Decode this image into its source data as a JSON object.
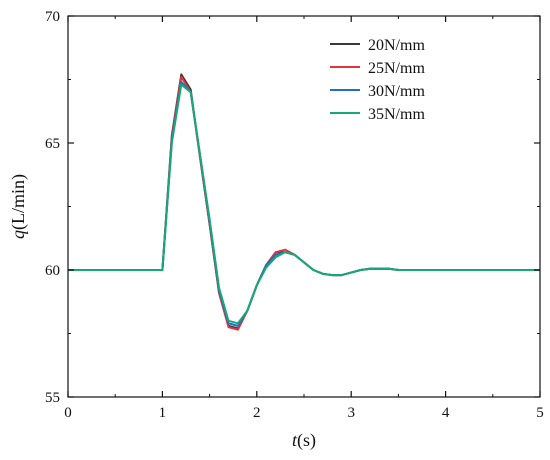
{
  "chart_data": {
    "type": "line",
    "title": "",
    "xlabel": {
      "var": "t",
      "unit": "(s)"
    },
    "ylabel": {
      "var": "q",
      "unit": "(L/min)"
    },
    "xlim": [
      0,
      5
    ],
    "ylim": [
      55,
      70
    ],
    "x_ticks": [
      0,
      1,
      2,
      3,
      4,
      5
    ],
    "y_ticks": [
      55,
      60,
      65,
      70
    ],
    "grid": false,
    "legend_placement": "top-right",
    "series": [
      {
        "name": "20N/mm",
        "color": "#3a3a3a",
        "x": [
          0.0,
          0.1,
          0.2,
          0.3,
          0.4,
          0.5,
          0.6,
          0.7,
          0.8,
          0.9,
          1.0,
          1.1,
          1.2,
          1.3,
          1.4,
          1.5,
          1.6,
          1.7,
          1.8,
          1.9,
          2.0,
          2.1,
          2.2,
          2.3,
          2.4,
          2.5,
          2.6,
          2.7,
          2.8,
          2.9,
          3.0,
          3.1,
          3.2,
          3.3,
          3.4,
          3.5,
          3.6,
          3.7,
          3.8,
          3.9,
          4.0,
          4.1,
          4.2,
          4.3,
          4.4,
          4.5,
          4.6,
          4.7,
          4.8,
          4.9,
          5.0
        ],
        "y": [
          60.0,
          60.0,
          60.0,
          60.0,
          60.0,
          60.0,
          60.0,
          60.0,
          60.0,
          60.0,
          60.0,
          65.3,
          67.7,
          67.1,
          64.4,
          61.8,
          59.1,
          57.8,
          57.7,
          58.4,
          59.4,
          60.2,
          60.7,
          60.7,
          60.6,
          60.3,
          60.0,
          59.85,
          59.8,
          59.8,
          59.9,
          60.0,
          60.05,
          60.05,
          60.05,
          60.0,
          60.0,
          60.0,
          60.0,
          60.0,
          60.0,
          60.0,
          60.0,
          60.0,
          60.0,
          60.0,
          60.0,
          60.0,
          60.0,
          60.0,
          60.0
        ]
      },
      {
        "name": "25N/mm",
        "color": "#e0353a",
        "x": [
          0.0,
          0.1,
          0.2,
          0.3,
          0.4,
          0.5,
          0.6,
          0.7,
          0.8,
          0.9,
          1.0,
          1.1,
          1.2,
          1.3,
          1.4,
          1.5,
          1.6,
          1.7,
          1.8,
          1.9,
          2.0,
          2.1,
          2.2,
          2.3,
          2.4,
          2.5,
          2.6,
          2.7,
          2.8,
          2.9,
          3.0,
          3.1,
          3.2,
          3.3,
          3.4,
          3.5,
          3.6,
          3.7,
          3.8,
          3.9,
          4.0,
          4.1,
          4.2,
          4.3,
          4.4,
          4.5,
          4.6,
          4.7,
          4.8,
          4.9,
          5.0
        ],
        "y": [
          60.0,
          60.0,
          60.0,
          60.0,
          60.0,
          60.0,
          60.0,
          60.0,
          60.0,
          60.0,
          60.0,
          65.2,
          67.6,
          67.0,
          64.4,
          61.8,
          59.1,
          57.75,
          57.65,
          58.4,
          59.4,
          60.2,
          60.7,
          60.8,
          60.6,
          60.3,
          60.0,
          59.85,
          59.8,
          59.8,
          59.9,
          60.0,
          60.05,
          60.05,
          60.05,
          60.0,
          60.0,
          60.0,
          60.0,
          60.0,
          60.0,
          60.0,
          60.0,
          60.0,
          60.0,
          60.0,
          60.0,
          60.0,
          60.0,
          60.0,
          60.0
        ]
      },
      {
        "name": "30N/mm",
        "color": "#1f6fc5",
        "x": [
          0.0,
          0.1,
          0.2,
          0.3,
          0.4,
          0.5,
          0.6,
          0.7,
          0.8,
          0.9,
          1.0,
          1.1,
          1.2,
          1.3,
          1.4,
          1.5,
          1.6,
          1.7,
          1.8,
          1.9,
          2.0,
          2.1,
          2.2,
          2.3,
          2.4,
          2.5,
          2.6,
          2.7,
          2.8,
          2.9,
          3.0,
          3.1,
          3.2,
          3.3,
          3.4,
          3.5,
          3.6,
          3.7,
          3.8,
          3.9,
          4.0,
          4.1,
          4.2,
          4.3,
          4.4,
          4.5,
          4.6,
          4.7,
          4.8,
          4.9,
          5.0
        ],
        "y": [
          60.0,
          60.0,
          60.0,
          60.0,
          60.0,
          60.0,
          60.0,
          60.0,
          60.0,
          60.0,
          60.0,
          65.1,
          67.4,
          67.0,
          64.5,
          61.9,
          59.2,
          57.9,
          57.8,
          58.4,
          59.4,
          60.2,
          60.6,
          60.7,
          60.6,
          60.3,
          60.0,
          59.85,
          59.8,
          59.8,
          59.9,
          60.0,
          60.05,
          60.05,
          60.05,
          60.0,
          60.0,
          60.0,
          60.0,
          60.0,
          60.0,
          60.0,
          60.0,
          60.0,
          60.0,
          60.0,
          60.0,
          60.0,
          60.0,
          60.0,
          60.0
        ]
      },
      {
        "name": "35N/mm",
        "color": "#17a878",
        "x": [
          0.0,
          0.1,
          0.2,
          0.3,
          0.4,
          0.5,
          0.6,
          0.7,
          0.8,
          0.9,
          1.0,
          1.1,
          1.2,
          1.3,
          1.4,
          1.5,
          1.6,
          1.7,
          1.8,
          1.9,
          2.0,
          2.1,
          2.2,
          2.3,
          2.4,
          2.5,
          2.6,
          2.7,
          2.8,
          2.9,
          3.0,
          3.1,
          3.2,
          3.3,
          3.4,
          3.5,
          3.6,
          3.7,
          3.8,
          3.9,
          4.0,
          4.1,
          4.2,
          4.3,
          4.4,
          4.5,
          4.6,
          4.7,
          4.8,
          4.9,
          5.0
        ],
        "y": [
          60.0,
          60.0,
          60.0,
          60.0,
          60.0,
          60.0,
          60.0,
          60.0,
          60.0,
          60.0,
          60.0,
          65.0,
          67.3,
          67.0,
          64.5,
          62.0,
          59.3,
          58.0,
          57.9,
          58.4,
          59.4,
          60.1,
          60.5,
          60.7,
          60.6,
          60.3,
          60.0,
          59.85,
          59.8,
          59.8,
          59.9,
          60.0,
          60.05,
          60.05,
          60.05,
          60.0,
          60.0,
          60.0,
          60.0,
          60.0,
          60.0,
          60.0,
          60.0,
          60.0,
          60.0,
          60.0,
          60.0,
          60.0,
          60.0,
          60.0,
          60.0
        ]
      }
    ]
  }
}
